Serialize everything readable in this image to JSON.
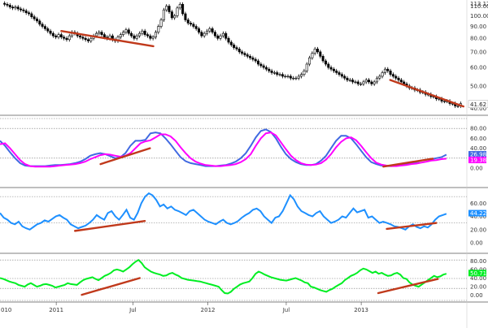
{
  "chart_data": [
    {
      "panel": "price",
      "type": "candlestick",
      "scale": "log",
      "ylim": [
        38,
        115
      ],
      "yticks": [
        "110.00",
        "100.00",
        "90.00",
        "80.00",
        "70.00",
        "60.00",
        "50.00",
        "40.00"
      ],
      "ytick_values": [
        110,
        100,
        90,
        80,
        70,
        60,
        50,
        40
      ],
      "top_label": "113.12",
      "last_label": "41.62",
      "last_value": 41.62,
      "grid": false,
      "close_series": [
        112,
        111,
        109,
        108,
        109,
        107,
        106,
        105,
        103,
        102,
        99,
        97,
        95,
        92,
        90,
        88,
        86,
        84,
        82,
        81,
        83,
        81,
        80,
        79,
        82,
        85,
        84,
        82,
        81,
        80,
        79,
        78,
        80,
        82,
        84,
        85,
        83,
        81,
        80,
        82,
        79,
        78,
        81,
        83,
        85,
        87,
        84,
        82,
        80,
        82,
        84,
        86,
        83,
        82,
        80,
        81,
        85,
        90,
        96,
        106,
        110,
        104,
        98,
        100,
        108,
        112,
        102,
        96,
        93,
        92,
        90,
        88,
        85,
        82,
        84,
        86,
        88,
        85,
        82,
        80,
        82,
        84,
        80,
        77,
        75,
        73,
        72,
        70,
        69,
        68,
        67,
        66,
        65,
        64,
        62,
        61,
        60,
        59,
        58,
        57,
        57,
        56,
        56,
        55,
        55,
        55,
        54,
        54,
        54,
        55,
        56,
        58,
        62,
        66,
        69,
        72,
        70,
        67,
        64,
        62,
        60,
        59,
        58,
        57,
        56,
        55,
        54,
        53,
        53,
        52,
        52,
        51,
        51,
        52,
        53,
        52,
        51,
        52,
        54,
        55,
        57,
        59,
        58,
        56,
        55,
        54,
        53,
        52,
        51,
        50,
        49,
        49,
        48,
        48,
        47,
        47,
        46,
        46,
        45,
        45,
        44,
        44,
        43,
        43,
        43,
        42,
        42,
        41,
        41,
        42
      ],
      "trendlines": [
        {
          "start": [
            36,
            86
          ],
          "end": [
            90,
            74
          ]
        },
        {
          "start": [
            229,
            53
          ],
          "end": [
            272,
            40.8
          ]
        }
      ]
    },
    {
      "panel": "oscillator-1",
      "type": "line",
      "ylim": [
        0,
        100
      ],
      "yticks": [
        "80.00",
        "60.00",
        "40.00",
        "20.00",
        "0.00"
      ],
      "ytick_values": [
        80,
        60,
        40,
        20,
        0
      ],
      "gridlines": [
        100,
        80,
        20
      ],
      "grid": false,
      "series": [
        {
          "color": "#4169e1",
          "badge": "26.98",
          "last": 26.98,
          "values": [
            55,
            45,
            32,
            20,
            10,
            5,
            4,
            4,
            4,
            4,
            5,
            6,
            6,
            7,
            8,
            10,
            13,
            18,
            25,
            28,
            30,
            28,
            24,
            20,
            22,
            30,
            45,
            55,
            55,
            57,
            70,
            72,
            70,
            60,
            48,
            35,
            22,
            14,
            10,
            8,
            6,
            4,
            4,
            4,
            5,
            6,
            9,
            13,
            20,
            30,
            45,
            62,
            75,
            78,
            73,
            60,
            43,
            28,
            18,
            12,
            8,
            6,
            6,
            8,
            15,
            25,
            40,
            55,
            65,
            65,
            60,
            48,
            35,
            22,
            12,
            8,
            5,
            4,
            4,
            5,
            6,
            8,
            10,
            12,
            15,
            17,
            18,
            20,
            22,
            27
          ]
        },
        {
          "color": "#ff00ff",
          "badge": "19.38",
          "last": 19.38,
          "values": [
            48,
            50,
            40,
            28,
            16,
            8,
            4,
            3,
            3,
            3,
            3,
            4,
            5,
            6,
            7,
            8,
            10,
            13,
            18,
            22,
            26,
            28,
            27,
            25,
            23,
            25,
            30,
            40,
            50,
            54,
            56,
            62,
            68,
            68,
            64,
            55,
            42,
            30,
            20,
            13,
            9,
            6,
            5,
            4,
            4,
            5,
            6,
            8,
            12,
            18,
            28,
            45,
            60,
            70,
            72,
            66,
            52,
            38,
            25,
            16,
            10,
            7,
            6,
            7,
            10,
            17,
            28,
            42,
            53,
            60,
            62,
            56,
            45,
            32,
            20,
            11,
            7,
            5,
            4,
            4,
            5,
            6,
            8,
            9,
            11,
            13,
            15,
            16,
            18,
            19
          ]
        }
      ],
      "trendlines": [
        {
          "start": [
            59,
            8
          ],
          "end": [
            88,
            40
          ]
        },
        {
          "start": [
            225,
            3
          ],
          "end": [
            254,
            19
          ]
        }
      ]
    },
    {
      "panel": "oscillator-2",
      "type": "line",
      "ylim": [
        0,
        80
      ],
      "yticks": [
        "60.00",
        "40.00",
        "20.00",
        "0.00"
      ],
      "ytick_values": [
        60,
        40,
        20,
        0
      ],
      "gridlines": [
        70,
        30
      ],
      "grid": false,
      "series": [
        {
          "color": "#1e90ff",
          "badge": "44.22",
          "last": 44.22,
          "values": [
            45,
            38,
            35,
            30,
            28,
            32,
            25,
            22,
            20,
            24,
            28,
            30,
            34,
            32,
            36,
            40,
            42,
            38,
            35,
            28,
            25,
            22,
            24,
            26,
            30,
            35,
            42,
            38,
            35,
            45,
            48,
            40,
            35,
            42,
            50,
            38,
            35,
            45,
            60,
            70,
            75,
            72,
            65,
            55,
            58,
            52,
            55,
            50,
            48,
            45,
            42,
            48,
            50,
            45,
            40,
            35,
            32,
            30,
            28,
            32,
            35,
            30,
            28,
            30,
            33,
            38,
            42,
            45,
            50,
            52,
            48,
            40,
            35,
            30,
            38,
            40,
            48,
            60,
            72,
            66,
            55,
            48,
            45,
            42,
            40,
            45,
            48,
            40,
            35,
            30,
            32,
            35,
            40,
            38,
            45,
            52,
            46,
            48,
            50,
            38,
            40,
            35,
            30,
            32,
            30,
            28,
            25,
            24,
            22,
            20,
            25,
            28,
            24,
            22,
            25,
            23,
            28,
            35,
            40,
            42,
            44
          ]
        }
      ],
      "trendlines": [
        {
          "start": [
            44,
            18
          ],
          "end": [
            85,
            33
          ]
        },
        {
          "start": [
            227,
            21
          ],
          "end": [
            256,
            30
          ]
        }
      ]
    },
    {
      "panel": "oscillator-3",
      "type": "line",
      "ylim": [
        -12,
        90
      ],
      "yticks": [
        "80.00",
        "60.00",
        "40.00",
        "20.00",
        "0.00"
      ],
      "ytick_values": [
        80,
        60,
        40,
        20,
        0
      ],
      "gridlines": [
        82,
        39,
        16,
        -12
      ],
      "grid": false,
      "series": [
        {
          "color": "#00ee22",
          "badge": "50.71",
          "last": 50.71,
          "values": [
            40,
            38,
            35,
            32,
            30,
            28,
            24,
            22,
            20,
            25,
            28,
            24,
            20,
            22,
            25,
            26,
            24,
            22,
            18,
            20,
            22,
            24,
            28,
            26,
            25,
            24,
            30,
            35,
            38,
            40,
            42,
            38,
            35,
            40,
            45,
            48,
            52,
            58,
            60,
            58,
            55,
            60,
            65,
            72,
            78,
            82,
            75,
            65,
            60,
            55,
            52,
            50,
            48,
            45,
            46,
            50,
            52,
            48,
            45,
            40,
            38,
            36,
            35,
            34,
            33,
            32,
            30,
            28,
            26,
            24,
            22,
            20,
            12,
            5,
            4,
            8,
            15,
            20,
            25,
            28,
            30,
            32,
            40,
            50,
            55,
            52,
            48,
            45,
            42,
            40,
            38,
            36,
            35,
            34,
            36,
            38,
            40,
            37,
            34,
            30,
            28,
            20,
            18,
            15,
            12,
            10,
            8,
            12,
            15,
            20,
            24,
            28,
            35,
            40,
            45,
            48,
            52,
            58,
            62,
            60,
            56,
            52,
            55,
            50,
            52,
            48,
            45,
            46,
            50,
            52,
            48,
            40,
            38,
            30,
            25,
            22,
            20,
            25,
            30,
            35,
            40,
            45,
            42,
            44,
            48,
            50
          ]
        }
      ],
      "trendlines": [
        {
          "start": [
            48,
            1
          ],
          "end": [
            82,
            40
          ]
        },
        {
          "start": [
            222,
            5
          ],
          "end": [
            257,
            38
          ]
        }
      ]
    }
  ],
  "xaxis": {
    "labels": [
      {
        "text": "2011",
        "pos": 33
      },
      {
        "text": "Jul",
        "pos": 78
      },
      {
        "text": "2012",
        "pos": 122
      },
      {
        "text": "Jul",
        "pos": 168
      },
      {
        "text": "2013",
        "pos": 212
      }
    ],
    "edge_label": "010",
    "length": 274
  },
  "colors": {
    "candle": "#000000",
    "trendline": "#c0391b",
    "gridline": "#777777",
    "separator": "#000000",
    "axis_text": "#333333",
    "last_badge": "#ffffff"
  }
}
